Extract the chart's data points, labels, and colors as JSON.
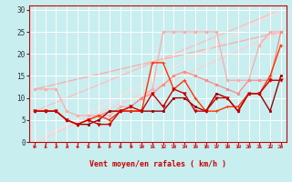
{
  "bg_color": "#c8eef0",
  "grid_color": "#ffffff",
  "xlabel": "Vent moyen/en rafales ( km/h )",
  "xlim": [
    -0.5,
    23.5
  ],
  "ylim": [
    0,
    31
  ],
  "yticks": [
    0,
    5,
    10,
    15,
    20,
    25,
    30
  ],
  "xticks": [
    0,
    1,
    2,
    3,
    4,
    5,
    6,
    7,
    8,
    9,
    10,
    11,
    12,
    13,
    14,
    15,
    16,
    17,
    18,
    19,
    20,
    21,
    22,
    23
  ],
  "line_light1": {
    "x": [
      0,
      23
    ],
    "y": [
      12,
      25
    ],
    "color": "#ffaaaa",
    "lw": 0.9
  },
  "line_light2": {
    "x": [
      0,
      23
    ],
    "y": [
      7,
      30
    ],
    "color": "#ffbbbb",
    "lw": 0.9
  },
  "line_light3": {
    "x": [
      0,
      23
    ],
    "y": [
      0,
      25
    ],
    "color": "#ffcccc",
    "lw": 0.9
  },
  "line_light4": {
    "x": [
      0,
      23
    ],
    "y": [
      0,
      30
    ],
    "color": "#ffdddd",
    "lw": 0.9
  },
  "series": [
    {
      "x": [
        0,
        1,
        2,
        3,
        4,
        5,
        6,
        7,
        8,
        9,
        10,
        11,
        12,
        13,
        14,
        15,
        16,
        17,
        18,
        19,
        20,
        21,
        22,
        23
      ],
      "y": [
        12,
        12,
        12,
        7,
        6,
        6,
        6,
        6,
        8,
        8,
        10,
        12,
        25,
        25,
        25,
        25,
        25,
        25,
        14,
        14,
        14,
        22,
        25,
        25
      ],
      "color": "#ffaaaa",
      "lw": 0.9,
      "marker": "o",
      "ms": 2.0,
      "zorder": 2
    },
    {
      "x": [
        0,
        1,
        2,
        3,
        4,
        5,
        6,
        7,
        8,
        9,
        10,
        11,
        12,
        13,
        14,
        15,
        16,
        17,
        18,
        19,
        20,
        21,
        22,
        23
      ],
      "y": [
        7,
        7,
        7,
        5,
        4,
        5,
        6,
        7,
        7,
        8,
        10,
        11,
        13,
        15,
        16,
        15,
        14,
        13,
        12,
        11,
        14,
        14,
        14,
        25
      ],
      "color": "#ff8888",
      "lw": 0.9,
      "marker": "o",
      "ms": 2.0,
      "zorder": 2
    },
    {
      "x": [
        0,
        1,
        2,
        3,
        4,
        5,
        6,
        7,
        8,
        9,
        10,
        11,
        12,
        13,
        14,
        15,
        16,
        17,
        18,
        19,
        20,
        21,
        22,
        23
      ],
      "y": [
        7,
        7,
        7,
        5,
        4,
        5,
        6,
        5,
        7,
        7,
        7,
        18,
        18,
        12,
        14,
        10,
        7,
        7,
        8,
        8,
        11,
        11,
        15,
        22
      ],
      "color": "#ff3300",
      "lw": 1.0,
      "marker": "+",
      "ms": 3.5,
      "zorder": 4
    },
    {
      "x": [
        0,
        1,
        2,
        3,
        4,
        5,
        6,
        7,
        8,
        9,
        10,
        11,
        12,
        13,
        14,
        15,
        16,
        17,
        18,
        19,
        20,
        21,
        22,
        23
      ],
      "y": [
        7,
        7,
        7,
        5,
        4,
        5,
        4,
        4,
        7,
        8,
        7,
        11,
        8,
        12,
        11,
        7,
        7,
        10,
        10,
        7,
        11,
        11,
        14,
        14
      ],
      "color": "#cc0000",
      "lw": 1.0,
      "marker": "v",
      "ms": 2.5,
      "zorder": 4
    },
    {
      "x": [
        0,
        1,
        2,
        3,
        4,
        5,
        6,
        7,
        8,
        9,
        10,
        11,
        12,
        13,
        14,
        15,
        16,
        17,
        18,
        19,
        20,
        21,
        22,
        23
      ],
      "y": [
        7,
        7,
        7,
        5,
        4,
        4,
        5,
        7,
        7,
        7,
        7,
        7,
        7,
        10,
        10,
        8,
        7,
        11,
        10,
        7,
        11,
        11,
        7,
        15
      ],
      "color": "#990000",
      "lw": 1.0,
      "marker": "s",
      "ms": 2.0,
      "zorder": 3
    }
  ]
}
